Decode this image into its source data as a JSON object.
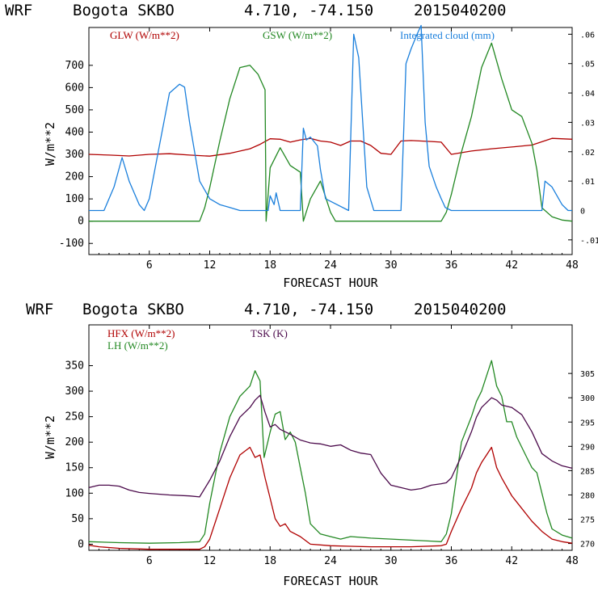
{
  "chart_data": [
    {
      "type": "line",
      "header": {
        "model": "WRF",
        "station": "Bogota SKBO",
        "coords": "4.710, -74.150",
        "date": "2015040200"
      },
      "xlabel": "FORECAST HOUR",
      "ylabel": "W/m**2",
      "xlim": [
        0,
        48
      ],
      "xticks": [
        "6",
        "12",
        "18",
        "24",
        "30",
        "36",
        "42",
        "48"
      ],
      "xtick_values": [
        6,
        12,
        18,
        24,
        30,
        36,
        42,
        48
      ],
      "ylim": [
        -150,
        870
      ],
      "yticks": [
        "-100",
        "0",
        "100",
        "200",
        "300",
        "400",
        "500",
        "600",
        "700"
      ],
      "ytick_values": [
        -100,
        0,
        100,
        200,
        300,
        400,
        500,
        600,
        700
      ],
      "y2lim": [
        -0.015,
        0.0623
      ],
      "y2ticks": [
        "-.01",
        "0",
        ".01",
        ".02",
        ".03",
        ".04",
        ".05",
        ".06"
      ],
      "y2tick_values": [
        -0.01,
        0,
        0.01,
        0.02,
        0.03,
        0.04,
        0.05,
        0.06
      ],
      "series": [
        {
          "name": "GLW (W/m**2)",
          "color": "#b00000",
          "axis": "left",
          "x": [
            0,
            2,
            4,
            6,
            8,
            10,
            12,
            14,
            16,
            17,
            18,
            19,
            20,
            21,
            22,
            23,
            24,
            25,
            26,
            27,
            28,
            29,
            30,
            31,
            32,
            33,
            34,
            35,
            36,
            38,
            40,
            42,
            44,
            46,
            48
          ],
          "y": [
            300,
            297,
            293,
            300,
            303,
            297,
            292,
            305,
            325,
            345,
            370,
            368,
            355,
            365,
            372,
            360,
            355,
            340,
            360,
            360,
            340,
            305,
            300,
            360,
            362,
            360,
            358,
            355,
            300,
            315,
            325,
            333,
            342,
            372,
            368
          ]
        },
        {
          "name": "GSW (W/m**2)",
          "color": "#228822",
          "axis": "left",
          "x": [
            0,
            11,
            11.5,
            12,
            13,
            14,
            15,
            16,
            16.8,
            17.5,
            17.6,
            18,
            19,
            20,
            21,
            21.3,
            22,
            23,
            24,
            24.5,
            35,
            35.5,
            36,
            37,
            38,
            39,
            40,
            41,
            42,
            43,
            44,
            44.5,
            45,
            46,
            47,
            48
          ],
          "y": [
            0,
            0,
            60,
            150,
            360,
            550,
            690,
            700,
            660,
            590,
            0,
            240,
            330,
            250,
            220,
            0,
            100,
            180,
            40,
            0,
            0,
            40,
            120,
            310,
            470,
            690,
            800,
            640,
            500,
            470,
            350,
            230,
            60,
            20,
            5,
            0
          ]
        },
        {
          "name": "Integrated cloud (mm)",
          "color": "#1a7fdc",
          "axis": "right",
          "x": [
            0,
            1.5,
            2.5,
            3.3,
            4,
            5,
            5.5,
            6,
            7,
            8,
            9,
            9.5,
            10,
            11,
            12,
            13,
            14,
            15,
            16,
            17,
            17.8,
            18,
            18.4,
            18.6,
            19,
            20,
            21,
            21.3,
            21.6,
            22,
            22.7,
            23,
            23.5,
            25.8,
            26.3,
            26.8,
            27.2,
            27.6,
            28.3,
            31,
            31.5,
            32,
            32.6,
            33,
            33.4,
            33.8,
            34.5,
            35,
            35.4,
            36,
            45,
            45.3,
            46,
            47,
            47.6,
            48
          ],
          "y": [
            0,
            0,
            0.008,
            0.018,
            0.01,
            0.002,
            0,
            0.004,
            0.022,
            0.04,
            0.043,
            0.042,
            0.03,
            0.01,
            0.004,
            0.002,
            0.001,
            0,
            0,
            0,
            0,
            0.005,
            0.002,
            0.006,
            0,
            0,
            0,
            0.028,
            0.024,
            0.025,
            0.022,
            0.014,
            0.004,
            0,
            0.06,
            0.052,
            0.03,
            0.008,
            0,
            0,
            0.05,
            0.055,
            0.06,
            0.063,
            0.03,
            0.015,
            0.008,
            0.004,
            0.001,
            0,
            0,
            0.01,
            0.008,
            0.002,
            0,
            0
          ]
        }
      ]
    },
    {
      "type": "line",
      "header": {
        "model": "WRF",
        "station": "Bogota SKBO",
        "coords": "4.710, -74.150",
        "date": "2015040200"
      },
      "xlabel": "FORECAST HOUR",
      "ylabel": "W/m**2",
      "xlim": [
        0,
        48
      ],
      "xticks": [
        "6",
        "12",
        "18",
        "24",
        "30",
        "36",
        "42",
        "48"
      ],
      "xtick_values": [
        6,
        12,
        18,
        24,
        30,
        36,
        42,
        48
      ],
      "ylim": [
        -12,
        430
      ],
      "yticks": [
        "0",
        "50",
        "100",
        "150",
        "200",
        "250",
        "300",
        "350"
      ],
      "ytick_values": [
        0,
        50,
        100,
        150,
        200,
        250,
        300,
        350
      ],
      "y2lim": [
        268.6,
        315
      ],
      "y2ticks": [
        "270",
        "275",
        "280",
        "285",
        "290",
        "295",
        "300",
        "305"
      ],
      "y2tick_values": [
        270,
        275,
        280,
        285,
        290,
        295,
        300,
        305
      ],
      "series": [
        {
          "name": "HFX (W/m**2)",
          "color": "#b00000",
          "axis": "left",
          "x": [
            0,
            1,
            3,
            6,
            9,
            11,
            11.5,
            12,
            13,
            14,
            15,
            16,
            16.5,
            17,
            17.5,
            18,
            18.5,
            19,
            19.5,
            20,
            21,
            22,
            24,
            26,
            28,
            30,
            32,
            35,
            35.5,
            36,
            37,
            38,
            38.5,
            39,
            39.5,
            40,
            40.5,
            41,
            42,
            43,
            44,
            45,
            46,
            47,
            48
          ],
          "y": [
            -2,
            -5,
            -8,
            -10,
            -10,
            -10,
            -5,
            10,
            70,
            130,
            175,
            190,
            170,
            175,
            130,
            90,
            50,
            35,
            40,
            25,
            15,
            0,
            -3,
            -4,
            -5,
            -5,
            -5,
            -3,
            0,
            25,
            70,
            110,
            140,
            160,
            175,
            190,
            150,
            130,
            95,
            70,
            45,
            25,
            10,
            5,
            2
          ]
        },
        {
          "name": "LH (W/m**2)",
          "color": "#228822",
          "axis": "left",
          "x": [
            0,
            3,
            6,
            9,
            11,
            11.5,
            12,
            13,
            14,
            15,
            16,
            16.5,
            17,
            17.4,
            18,
            18.5,
            19,
            19.5,
            20,
            20.5,
            21,
            21.5,
            22,
            23,
            24,
            25,
            26,
            28,
            30,
            32,
            34,
            35,
            35.5,
            36,
            37,
            38,
            38.5,
            39,
            39.5,
            40,
            40.5,
            41,
            41.5,
            42,
            42.5,
            43,
            43.5,
            44,
            44.5,
            45,
            45.5,
            46,
            47,
            48
          ],
          "y": [
            5,
            3,
            2,
            3,
            5,
            20,
            80,
            180,
            250,
            290,
            310,
            340,
            320,
            170,
            220,
            255,
            260,
            205,
            220,
            200,
            150,
            100,
            40,
            20,
            15,
            10,
            15,
            12,
            10,
            8,
            6,
            5,
            20,
            60,
            200,
            250,
            280,
            300,
            330,
            360,
            310,
            290,
            240,
            240,
            210,
            190,
            170,
            150,
            140,
            100,
            60,
            30,
            18,
            12
          ]
        },
        {
          "name": "TSK (K)",
          "color": "#4b0a4b",
          "axis": "right",
          "x": [
            0,
            1,
            2,
            3,
            4,
            5,
            6,
            8,
            10,
            11,
            12,
            13,
            14,
            15,
            16,
            16.5,
            17,
            17.5,
            18,
            18.5,
            19,
            19.5,
            20,
            21,
            22,
            23,
            24,
            25,
            26,
            27,
            28,
            29,
            30,
            31,
            32,
            33,
            34,
            35,
            35.5,
            36,
            37,
            38,
            38.5,
            39,
            39.5,
            40,
            40.5,
            41,
            42,
            43,
            44,
            45,
            46,
            47,
            48
          ],
          "y": [
            281.5,
            282,
            282,
            281.8,
            281,
            280.5,
            280.3,
            280,
            279.8,
            279.6,
            283,
            287,
            292,
            296,
            298,
            299.5,
            300.5,
            297,
            294,
            294.5,
            293.5,
            293,
            292.5,
            291.3,
            290.7,
            290.5,
            290,
            290.3,
            289.2,
            288.6,
            288.3,
            284.5,
            282,
            281.5,
            281,
            281.3,
            282,
            282.3,
            282.5,
            283.5,
            288,
            293,
            296,
            298,
            299,
            300,
            299.5,
            298.5,
            298,
            296.5,
            293,
            288.5,
            287,
            286,
            285.5
          ]
        }
      ]
    }
  ]
}
